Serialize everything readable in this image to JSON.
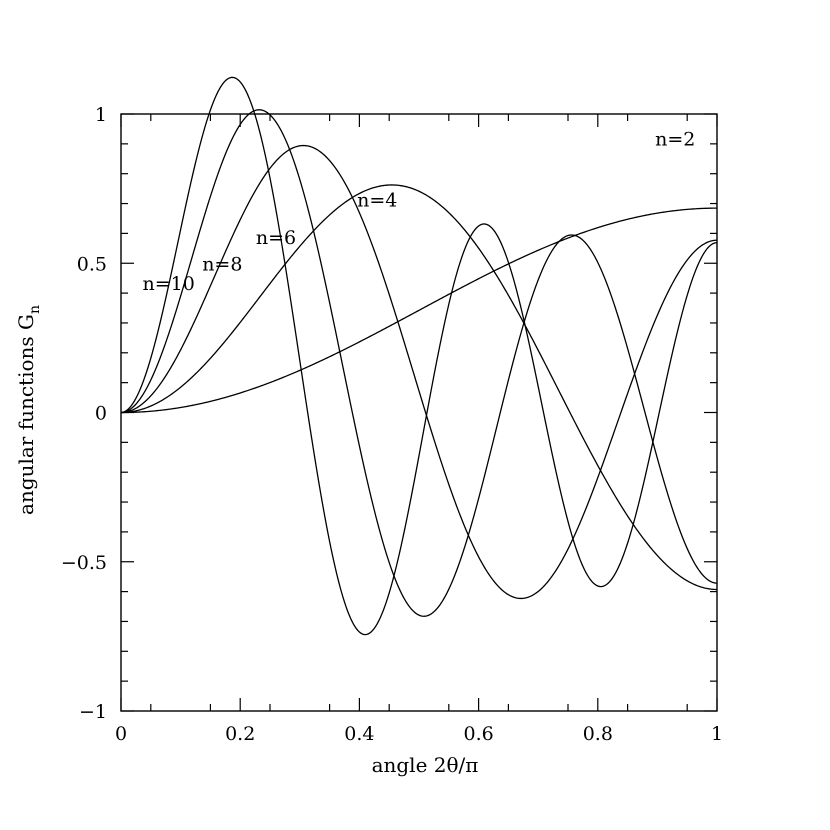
{
  "chart_data": {
    "type": "line",
    "title": "",
    "xlabel": "angle 2θ/π",
    "ylabel": "angular functions G",
    "ylabel_subscript": "n",
    "xlim": [
      0,
      1
    ],
    "ylim": [
      -1,
      1
    ],
    "grid": false,
    "x_ticks": [
      0,
      0.2,
      0.4,
      0.6,
      0.8,
      1
    ],
    "x_tick_labels": [
      "0",
      "0.2",
      "0.4",
      "0.6",
      "0.8",
      "1"
    ],
    "y_ticks": [
      -1,
      -0.5,
      0,
      0.5,
      1
    ],
    "y_tick_labels": [
      "−1",
      "−0.5",
      "0",
      "0.5",
      "1"
    ],
    "series": [
      {
        "name": "n=2",
        "n": 2
      },
      {
        "name": "n=4",
        "n": 4
      },
      {
        "name": "n=6",
        "n": 6
      },
      {
        "name": "n=8",
        "n": 8
      },
      {
        "name": "n=10",
        "n": 10
      }
    ],
    "annotations": [
      {
        "text": "n=2",
        "x": 0.93,
        "y": 0.895
      },
      {
        "text": "n=4",
        "x": 0.43,
        "y": 0.69
      },
      {
        "text": "n=6",
        "x": 0.26,
        "y": 0.565
      },
      {
        "text": "n=8",
        "x": 0.17,
        "y": 0.475
      },
      {
        "text": "n=10",
        "x": 0.08,
        "y": 0.41
      }
    ]
  }
}
